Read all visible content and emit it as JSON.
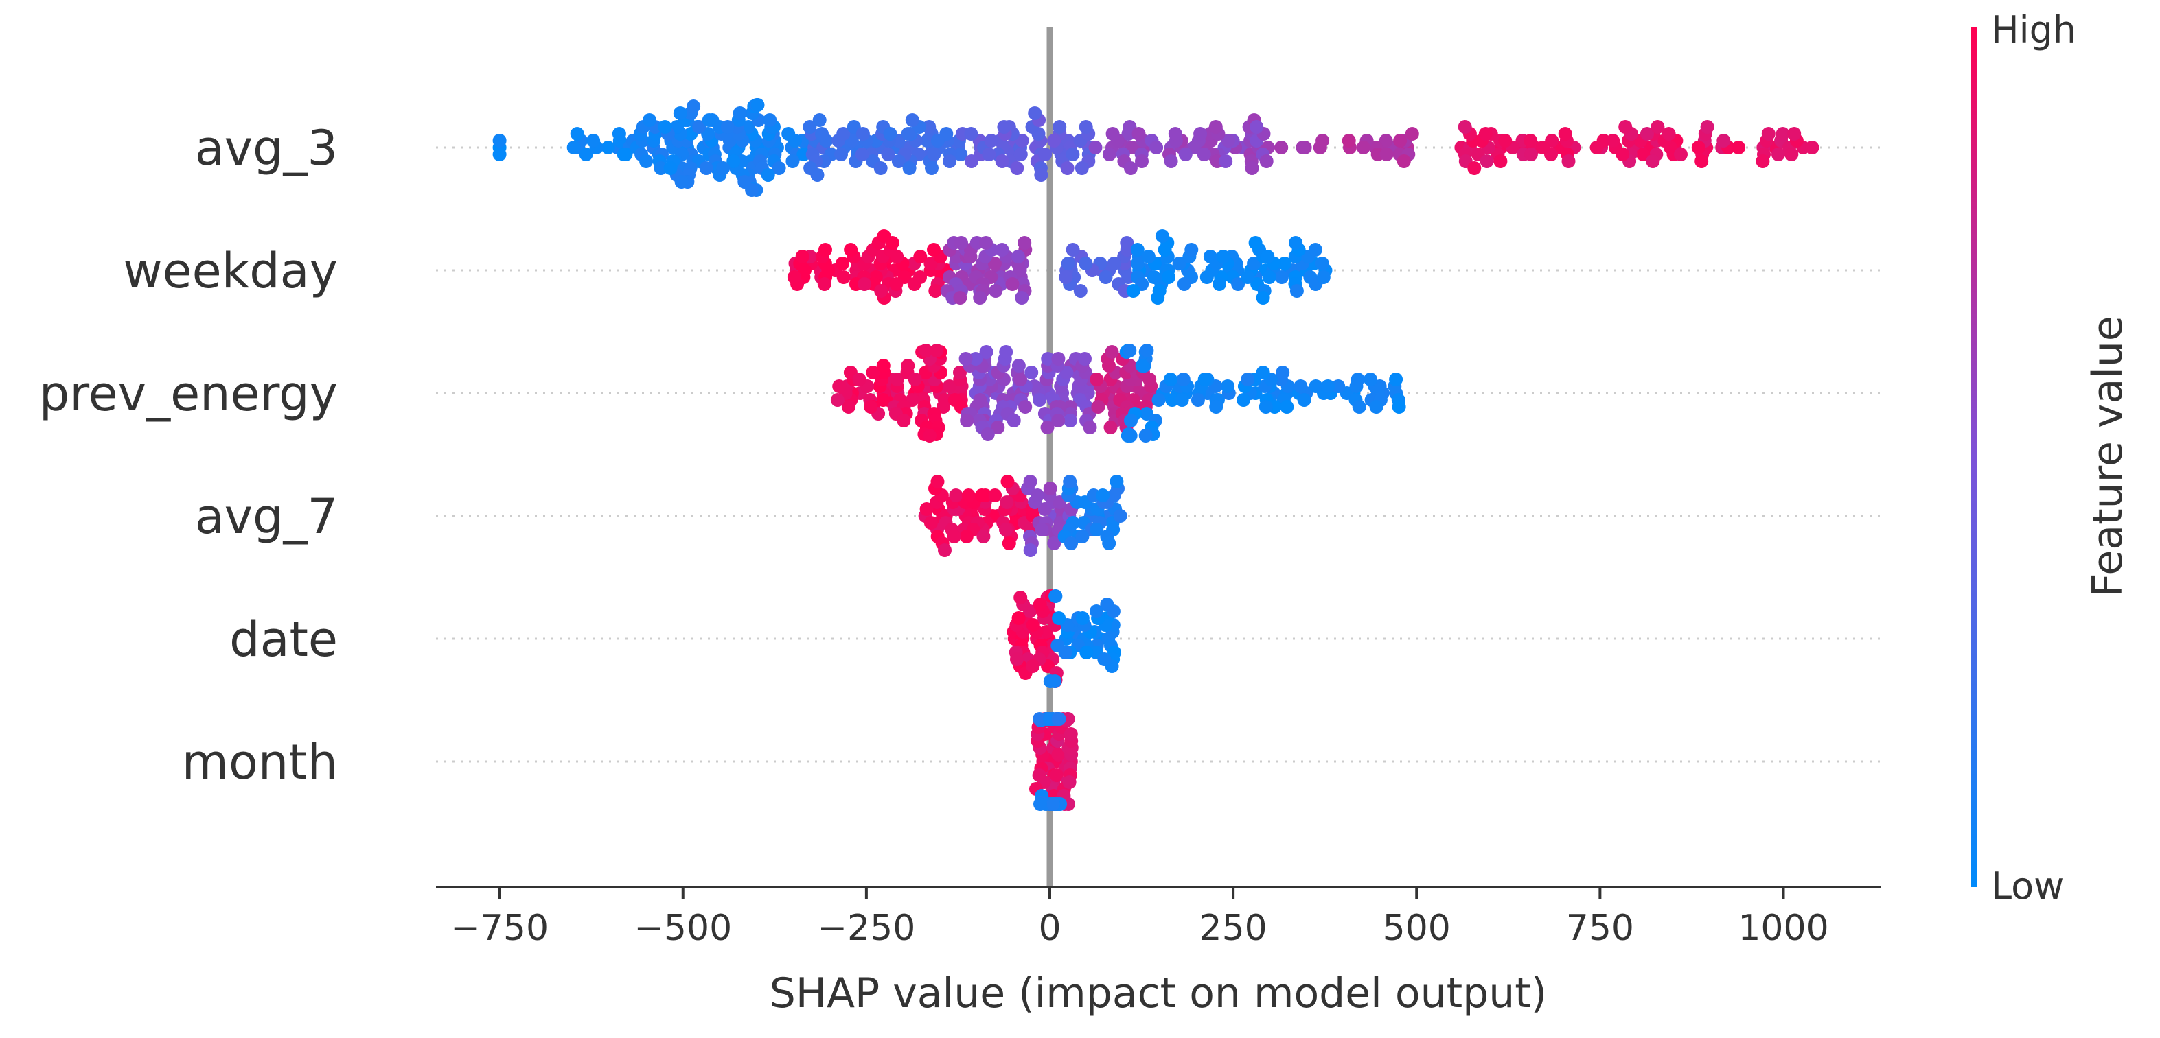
{
  "chart_data": {
    "type": "scatter",
    "subtype": "shap-beeswarm",
    "title": "",
    "xlabel": "SHAP value (impact on model output)",
    "xlim": [
      -830,
      1130
    ],
    "xticks": [
      -750,
      -500,
      -250,
      0,
      250,
      500,
      750,
      1000
    ],
    "xtick_labels": [
      "−750",
      "−500",
      "−250",
      "0",
      "250",
      "500",
      "750",
      "1000"
    ],
    "features": [
      {
        "name": "avg_3",
        "segments": [
          {
            "x0": -750,
            "x1": -750,
            "n": 3,
            "c": 0.0
          },
          {
            "x0": -660,
            "x1": -560,
            "n": 16,
            "c": 0.05
          },
          {
            "x0": -560,
            "x1": -330,
            "n": 120,
            "c": 0.08
          },
          {
            "x0": -330,
            "x1": -120,
            "n": 70,
            "c": 0.25
          },
          {
            "x0": -120,
            "x1": 60,
            "n": 55,
            "c": 0.4
          },
          {
            "x0": 60,
            "x1": 300,
            "n": 60,
            "c": 0.58
          },
          {
            "x0": 300,
            "x1": 500,
            "n": 22,
            "c": 0.7
          },
          {
            "x0": 560,
            "x1": 1050,
            "n": 90,
            "c": 0.92
          }
        ]
      },
      {
        "name": "weekday",
        "segments": [
          {
            "x0": -350,
            "x1": -140,
            "n": 70,
            "c": 0.97
          },
          {
            "x0": -140,
            "x1": -30,
            "n": 55,
            "c": 0.6
          },
          {
            "x0": 20,
            "x1": 110,
            "n": 25,
            "c": 0.35
          },
          {
            "x0": 110,
            "x1": 380,
            "n": 80,
            "c": 0.04
          }
        ]
      },
      {
        "name": "prev_energy",
        "segments": [
          {
            "x0": -290,
            "x1": -120,
            "n": 80,
            "c": 0.95
          },
          {
            "x0": -120,
            "x1": 60,
            "n": 100,
            "c": 0.55
          },
          {
            "x0": 60,
            "x1": 140,
            "n": 40,
            "c": 0.8
          },
          {
            "x0": 100,
            "x1": 480,
            "n": 90,
            "c": 0.05
          }
        ]
      },
      {
        "name": "avg_7",
        "segments": [
          {
            "x0": -170,
            "x1": -20,
            "n": 65,
            "c": 0.95
          },
          {
            "x0": -30,
            "x1": 30,
            "n": 25,
            "c": 0.55
          },
          {
            "x0": 20,
            "x1": 100,
            "n": 35,
            "c": 0.1
          }
        ]
      },
      {
        "name": "date",
        "segments": [
          {
            "x0": -50,
            "x1": 10,
            "n": 45,
            "c": 0.95
          },
          {
            "x0": 0,
            "x1": 90,
            "n": 40,
            "c": 0.05
          }
        ]
      },
      {
        "name": "month",
        "segments": [
          {
            "x0": -20,
            "x1": 30,
            "n": 55,
            "c": 0.9
          },
          {
            "x0": -15,
            "x1": 15,
            "n": 30,
            "c": 0.1
          }
        ]
      }
    ],
    "colorbar": {
      "label": "Feature value",
      "high_label": "High",
      "low_label": "Low",
      "low_color": "#008bfb",
      "high_color": "#ff0052"
    }
  }
}
